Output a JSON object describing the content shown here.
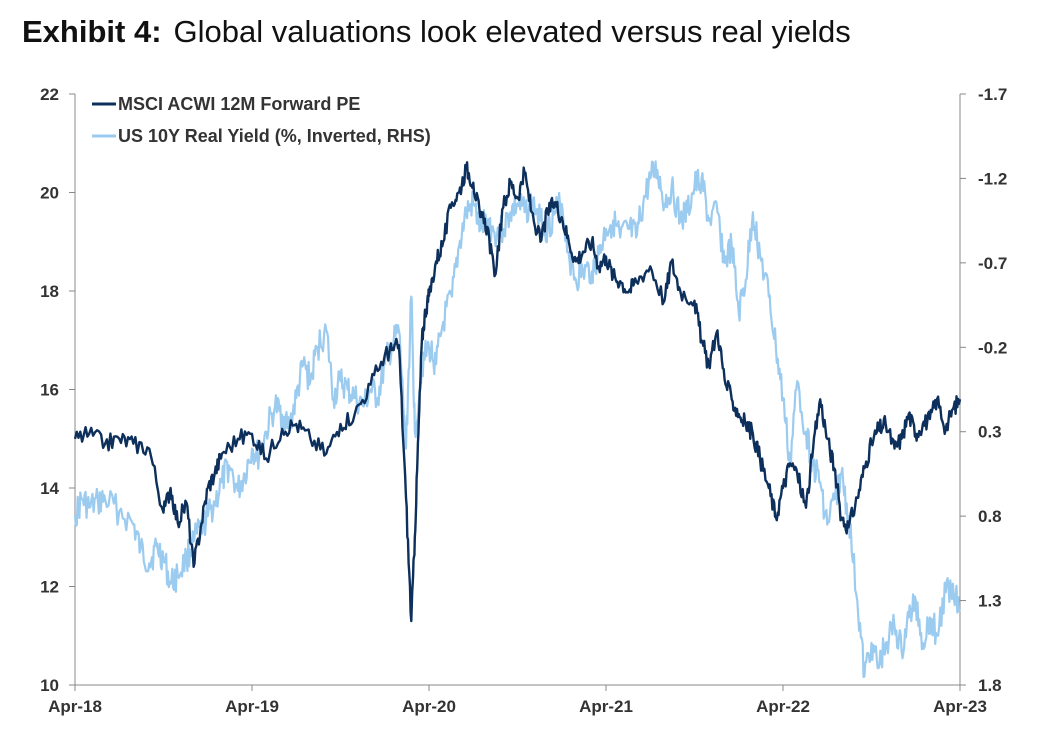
{
  "title": {
    "lead": "Exhibit 4:",
    "text": "Global valuations look elevated versus real yields"
  },
  "chart_data": {
    "type": "line",
    "x_ticks": [
      "Apr-18",
      "Apr-19",
      "Apr-20",
      "Apr-21",
      "Apr-22",
      "Apr-23"
    ],
    "left_axis": {
      "ticks": [
        "22",
        "20",
        "18",
        "16",
        "14",
        "12",
        "10"
      ],
      "ylim": [
        10,
        22
      ]
    },
    "right_axis": {
      "ticks": [
        "-1.7",
        "-1.2",
        "-0.7",
        "-0.2",
        "0.3",
        "0.8",
        "1.3",
        "1.8"
      ],
      "ylim": [
        1.8,
        -1.7
      ],
      "inverted": true
    },
    "grid": false,
    "legend_position": "top-left",
    "series": [
      {
        "name": "MSCI ACWI 12M Forward PE",
        "axis": "left",
        "color": "#0d2f5b",
        "x": [
          2018.25,
          2018.33,
          2018.42,
          2018.5,
          2018.58,
          2018.67,
          2018.75,
          2018.79,
          2018.83,
          2018.88,
          2018.92,
          2018.96,
          2019.0,
          2019.04,
          2019.08,
          2019.17,
          2019.25,
          2019.33,
          2019.42,
          2019.5,
          2019.58,
          2019.67,
          2019.75,
          2019.83,
          2019.92,
          2020.0,
          2020.04,
          2020.08,
          2020.12,
          2020.15,
          2020.17,
          2020.19,
          2020.21,
          2020.23,
          2020.25,
          2020.29,
          2020.33,
          2020.38,
          2020.42,
          2020.46,
          2020.5,
          2020.54,
          2020.58,
          2020.62,
          2020.67,
          2020.71,
          2020.75,
          2020.79,
          2020.83,
          2020.88,
          2020.92,
          2020.96,
          2021.0,
          2021.04,
          2021.08,
          2021.12,
          2021.17,
          2021.21,
          2021.25,
          2021.29,
          2021.33,
          2021.38,
          2021.42,
          2021.5,
          2021.58,
          2021.62,
          2021.67,
          2021.75,
          2021.79,
          2021.83,
          2021.88,
          2021.92,
          2021.96,
          2022.0,
          2022.04,
          2022.08,
          2022.12,
          2022.17,
          2022.21,
          2022.25,
          2022.29,
          2022.33,
          2022.38,
          2022.42,
          2022.46,
          2022.5,
          2022.54,
          2022.58,
          2022.62,
          2022.67,
          2022.71,
          2022.75,
          2022.79,
          2022.83,
          2022.88,
          2022.92,
          2022.96,
          2023.0,
          2023.04,
          2023.08,
          2023.12,
          2023.17,
          2023.21,
          2023.25
        ],
        "y": [
          15.0,
          15.1,
          14.9,
          15.0,
          14.9,
          14.8,
          13.5,
          14.0,
          13.3,
          13.7,
          12.4,
          13.2,
          14.0,
          14.3,
          14.7,
          15.0,
          15.1,
          14.6,
          15.2,
          15.3,
          15.0,
          14.7,
          15.3,
          15.5,
          16.1,
          16.7,
          16.8,
          16.9,
          13.8,
          11.3,
          13.0,
          15.1,
          17.0,
          17.6,
          17.9,
          18.6,
          19.0,
          19.8,
          20.0,
          20.5,
          20.2,
          19.5,
          19.3,
          18.3,
          19.7,
          20.2,
          19.9,
          20.4,
          19.6,
          19.0,
          19.6,
          19.8,
          19.5,
          19.0,
          18.6,
          18.8,
          19.0,
          18.5,
          18.7,
          18.3,
          18.2,
          18.0,
          18.2,
          18.5,
          17.8,
          18.6,
          18.0,
          17.8,
          17.0,
          16.5,
          17.2,
          16.2,
          15.8,
          15.5,
          15.3,
          15.1,
          14.6,
          14.0,
          13.4,
          14.0,
          14.5,
          14.3,
          13.6,
          14.8,
          15.8,
          15.0,
          14.4,
          13.4,
          13.2,
          13.8,
          14.4,
          14.9,
          15.2,
          15.3,
          14.8,
          15.0,
          15.5,
          15.1,
          15.3,
          15.4,
          15.8,
          15.2,
          15.6,
          15.8
        ]
      },
      {
        "name": "US 10Y Real Yield (%, Inverted, RHS)",
        "axis": "right",
        "color": "#9ccbf0",
        "x": [
          2018.25,
          2018.29,
          2018.33,
          2018.38,
          2018.42,
          2018.5,
          2018.58,
          2018.62,
          2018.67,
          2018.71,
          2018.75,
          2018.79,
          2018.83,
          2018.88,
          2018.92,
          2018.96,
          2019.0,
          2019.04,
          2019.08,
          2019.12,
          2019.17,
          2019.21,
          2019.25,
          2019.29,
          2019.33,
          2019.38,
          2019.42,
          2019.46,
          2019.5,
          2019.54,
          2019.58,
          2019.62,
          2019.67,
          2019.71,
          2019.75,
          2019.79,
          2019.83,
          2019.88,
          2019.92,
          2019.96,
          2020.0,
          2020.04,
          2020.08,
          2020.12,
          2020.15,
          2020.17,
          2020.21,
          2020.25,
          2020.29,
          2020.33,
          2020.38,
          2020.42,
          2020.46,
          2020.5,
          2020.54,
          2020.58,
          2020.62,
          2020.67,
          2020.71,
          2020.75,
          2020.79,
          2020.83,
          2020.88,
          2020.92,
          2020.96,
          2021.0,
          2021.04,
          2021.08,
          2021.12,
          2021.17,
          2021.21,
          2021.25,
          2021.29,
          2021.33,
          2021.38,
          2021.42,
          2021.46,
          2021.5,
          2021.54,
          2021.58,
          2021.62,
          2021.67,
          2021.71,
          2021.75,
          2021.79,
          2021.83,
          2021.88,
          2021.92,
          2021.96,
          2022.0,
          2022.04,
          2022.08,
          2022.12,
          2022.17,
          2022.21,
          2022.25,
          2022.29,
          2022.33,
          2022.38,
          2022.42,
          2022.46,
          2022.5,
          2022.54,
          2022.58,
          2022.62,
          2022.67,
          2022.71,
          2022.75,
          2022.79,
          2022.83,
          2022.88,
          2022.92,
          2022.96,
          2023.0,
          2023.04,
          2023.08,
          2023.12,
          2023.17,
          2023.21,
          2023.25
        ],
        "y": [
          0.8,
          0.7,
          0.75,
          0.72,
          0.7,
          0.77,
          0.85,
          1.0,
          1.08,
          0.98,
          1.05,
          1.2,
          1.15,
          1.05,
          0.95,
          0.88,
          0.8,
          0.72,
          0.6,
          0.5,
          0.65,
          0.55,
          0.4,
          0.45,
          0.3,
          0.15,
          0.2,
          0.28,
          0.1,
          -0.1,
          0.0,
          -0.2,
          -0.3,
          0.1,
          0.0,
          0.05,
          0.1,
          0.15,
          0.05,
          0.1,
          -0.1,
          -0.2,
          -0.3,
          0.4,
          -0.5,
          0.3,
          -0.1,
          -0.2,
          -0.1,
          -0.35,
          -0.5,
          -0.8,
          -1.0,
          -1.05,
          -0.9,
          -0.95,
          -0.88,
          -0.9,
          -1.0,
          -1.05,
          -1.0,
          -1.06,
          -0.95,
          -0.9,
          -1.0,
          -1.05,
          -0.75,
          -0.6,
          -0.65,
          -0.65,
          -0.75,
          -0.9,
          -0.95,
          -0.85,
          -0.9,
          -0.85,
          -1.05,
          -1.2,
          -1.25,
          -1.05,
          -1.15,
          -0.95,
          -1.0,
          -1.15,
          -1.2,
          -0.95,
          -1.0,
          -0.7,
          -0.8,
          -0.4,
          -0.6,
          -1.0,
          -0.75,
          -0.5,
          -0.2,
          0.1,
          0.5,
          0.0,
          0.3,
          0.5,
          0.6,
          0.85,
          0.7,
          0.55,
          0.8,
          1.3,
          1.75,
          1.55,
          1.7,
          1.55,
          1.45,
          1.6,
          1.4,
          1.3,
          1.55,
          1.4,
          1.5,
          1.25,
          1.2,
          1.35
        ]
      }
    ]
  }
}
